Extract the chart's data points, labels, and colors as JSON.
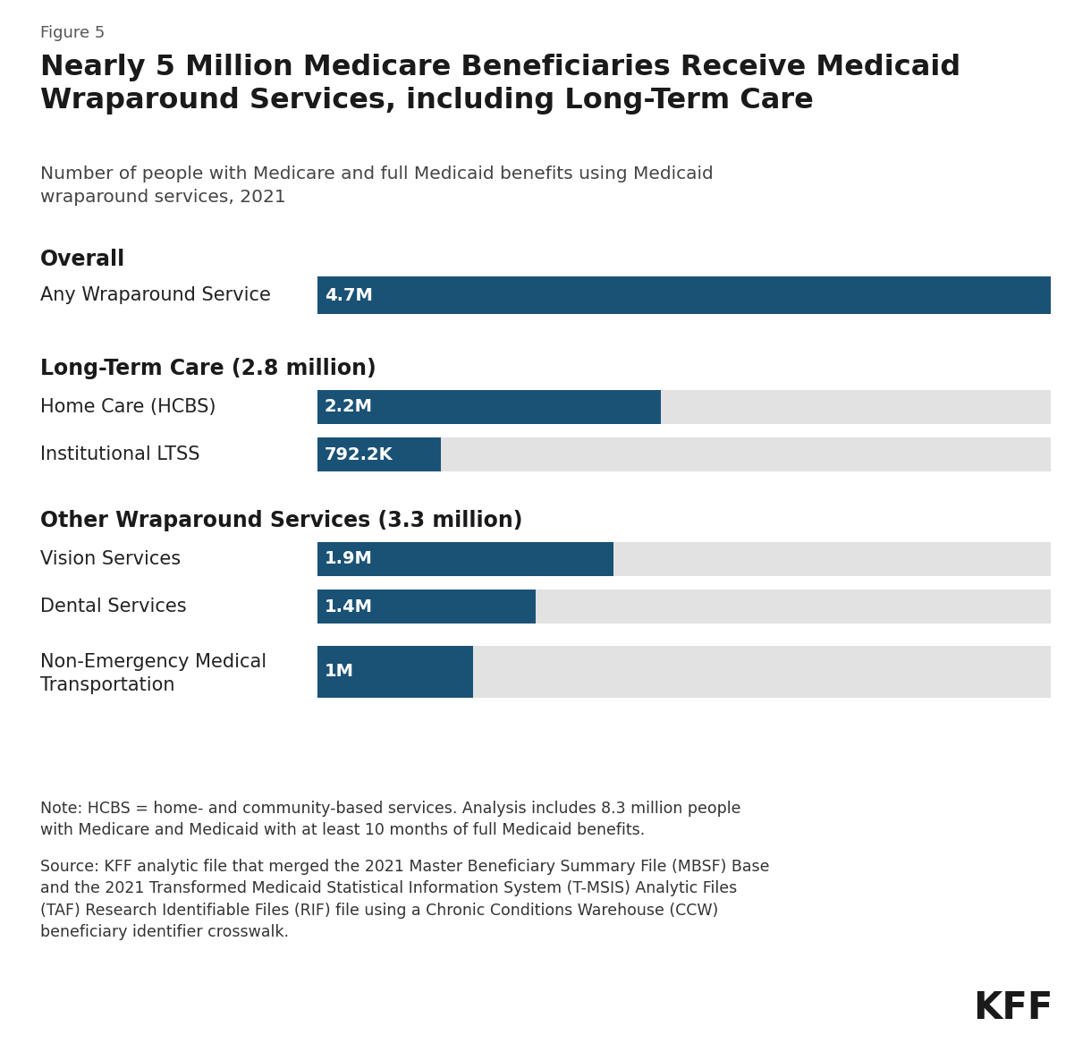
{
  "figure_label": "Figure 5",
  "title": "Nearly 5 Million Medicare Beneficiaries Receive Medicaid\nWraparound Services, including Long-Term Care",
  "subtitle": "Number of people with Medicare and full Medicaid benefits using Medicaid\nwraparound services, 2021",
  "bar_color": "#1a5276",
  "bar_bg_color": "#e2e2e2",
  "sections": [
    {
      "header": "Overall",
      "bars": [
        {
          "label": "Any Wraparound Service",
          "value": 4.7,
          "label_text": "4.7M",
          "max_val": 4.7,
          "multiline": false
        }
      ]
    },
    {
      "header": "Long-Term Care (2.8 million)",
      "bars": [
        {
          "label": "Home Care (HCBS)",
          "value": 2.2,
          "label_text": "2.2M",
          "max_val": 4.7,
          "multiline": false
        },
        {
          "label": "Institutional LTSS",
          "value": 0.7922,
          "label_text": "792.2K",
          "max_val": 4.7,
          "multiline": false
        }
      ]
    },
    {
      "header": "Other Wraparound Services (3.3 million)",
      "bars": [
        {
          "label": "Vision Services",
          "value": 1.9,
          "label_text": "1.9M",
          "max_val": 4.7,
          "multiline": false
        },
        {
          "label": "Dental Services",
          "value": 1.4,
          "label_text": "1.4M",
          "max_val": 4.7,
          "multiline": false
        },
        {
          "label": "Non-Emergency Medical\nTransportation",
          "value": 1.0,
          "label_text": "1M",
          "max_val": 4.7,
          "multiline": true
        }
      ]
    }
  ],
  "note_text": "Note: HCBS = home- and community-based services. Analysis includes 8.3 million people\nwith Medicare and Medicaid with at least 10 months of full Medicaid benefits.",
  "source_text": "Source: KFF analytic file that merged the 2021 Master Beneficiary Summary File (MBSF) Base\nand the 2021 Transformed Medicaid Statistical Information System (T-MSIS) Analytic Files\n(TAF) Research Identifiable Files (RIF) file using a Chronic Conditions Warehouse (CCW)\nbeneficiary identifier crosswalk.",
  "kff_label": "KFF",
  "background_color": "#ffffff",
  "text_color": "#1a1a1a",
  "label_color": "#333333"
}
